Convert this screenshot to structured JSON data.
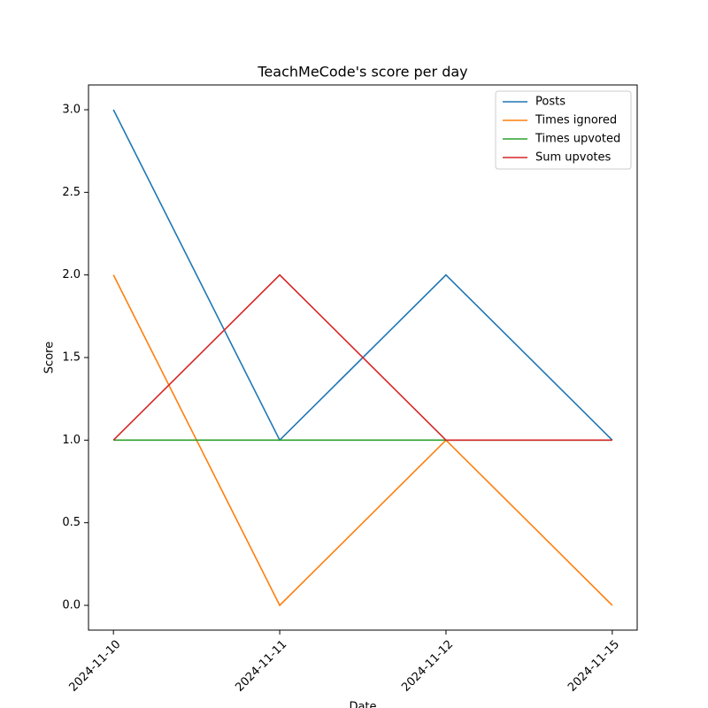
{
  "chart_data": {
    "type": "line",
    "title": "TeachMeCode's score per day",
    "xlabel": "Date",
    "ylabel": "Score",
    "categories": [
      "2024-11-10",
      "2024-11-11",
      "2024-11-12",
      "2024-11-15"
    ],
    "series": [
      {
        "name": "Posts",
        "color": "#1f77b4",
        "values": [
          3,
          1,
          2,
          1
        ]
      },
      {
        "name": "Times ignored",
        "color": "#ff7f0e",
        "values": [
          2,
          0,
          1,
          0
        ]
      },
      {
        "name": "Times upvoted",
        "color": "#2ca02c",
        "values": [
          1,
          1,
          1,
          1
        ]
      },
      {
        "name": "Sum upvotes",
        "color": "#d62728",
        "values": [
          1,
          2,
          1,
          1
        ]
      }
    ],
    "ylim": [
      -0.15,
      3.15
    ],
    "yticks": [
      {
        "value": 0,
        "label": "0.0"
      },
      {
        "value": 0.5,
        "label": "0.5"
      },
      {
        "value": 1,
        "label": "1.0"
      },
      {
        "value": 1.5,
        "label": "1.5"
      },
      {
        "value": 2,
        "label": "2.0"
      },
      {
        "value": 2.5,
        "label": "2.5"
      },
      {
        "value": 3,
        "label": "3.0"
      }
    ],
    "grid": false,
    "legend": "upper right"
  }
}
